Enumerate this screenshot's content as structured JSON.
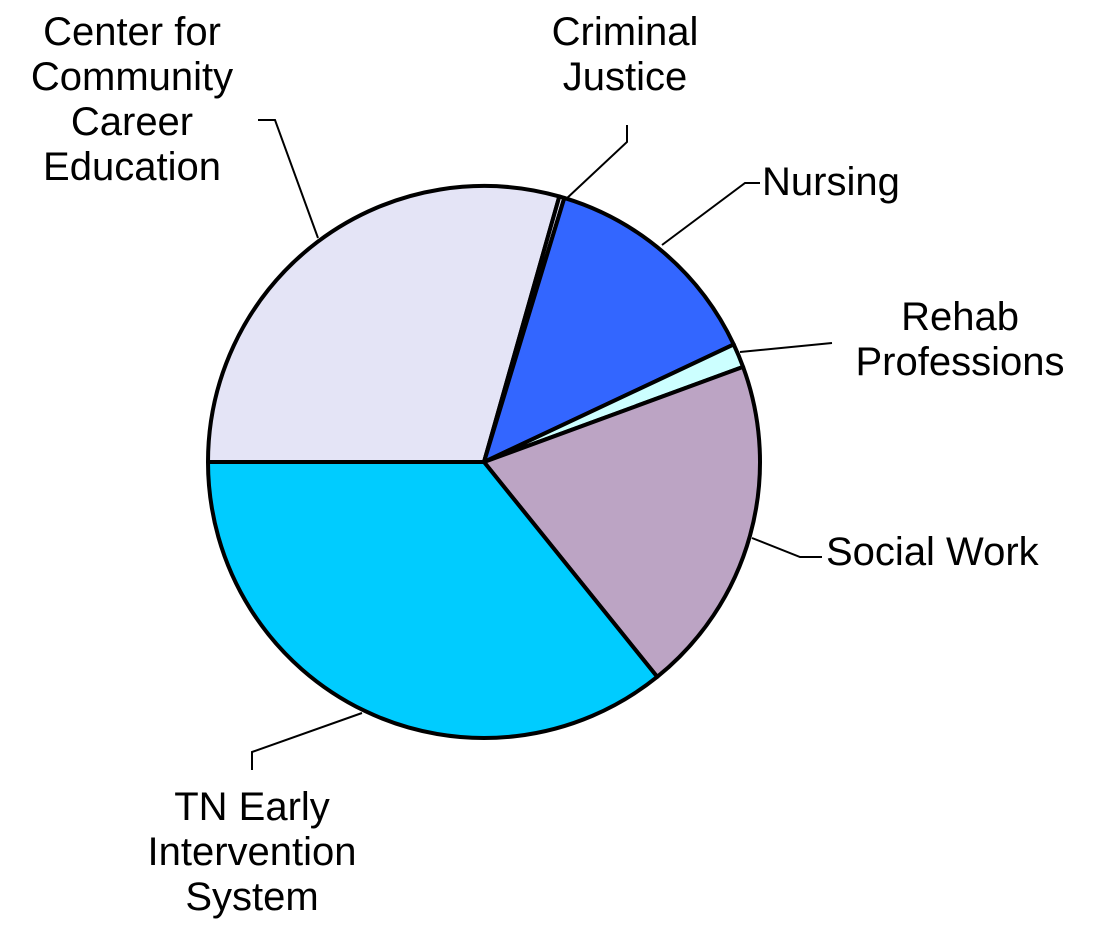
{
  "chart_data": {
    "type": "pie",
    "categories": [
      "Center for Community Career Education",
      "Criminal Justice",
      "Nursing",
      "Rehab Professions",
      "Social Work",
      "TN Early Intervention System"
    ],
    "values": [
      29.4,
      0.3,
      13.3,
      1.4,
      19.8,
      35.8
    ],
    "colors": [
      "#e4e4f6",
      "#e4e4f6",
      "#3366ff",
      "#ccffff",
      "#bca4c4",
      "#00ccff"
    ]
  }
}
